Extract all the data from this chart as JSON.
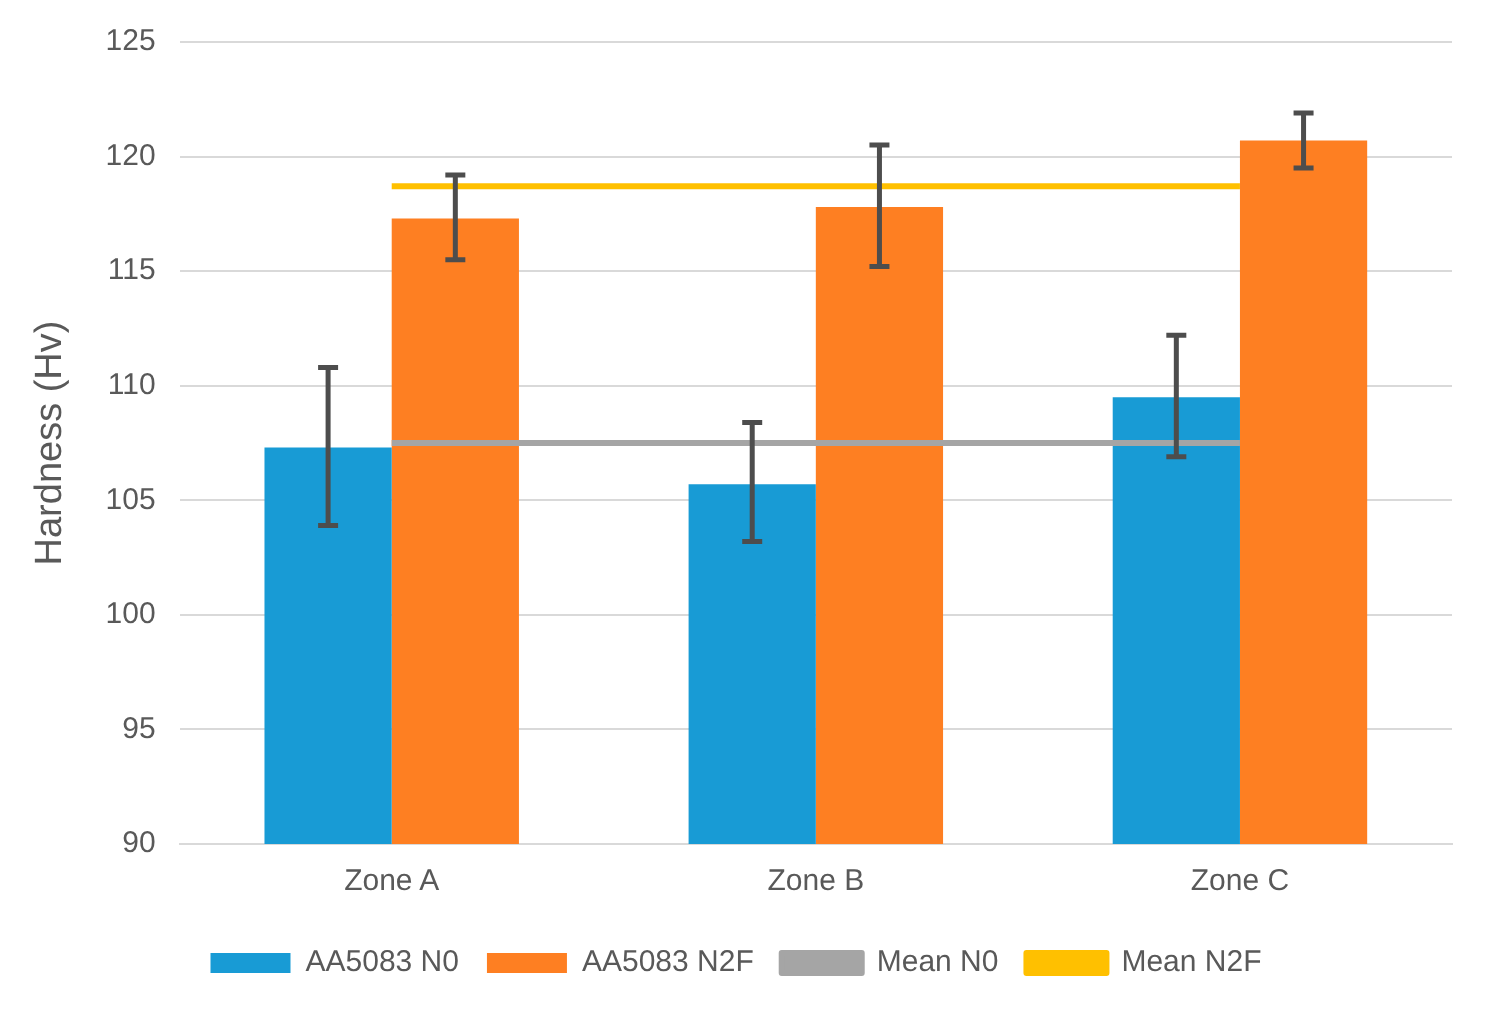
{
  "chart_data": {
    "type": "bar",
    "ylabel": "Hardness (Hv)",
    "categories": [
      "Zone A",
      "Zone B",
      "Zone C"
    ],
    "series": [
      {
        "name": "AA5083 N0",
        "color": "#189bd5",
        "values": [
          107.3,
          105.7,
          109.5
        ],
        "errors": [
          [
            103.9,
            110.8
          ],
          [
            103.2,
            108.4
          ],
          [
            106.9,
            112.2
          ]
        ]
      },
      {
        "name": "AA5083 N2F",
        "color": "#fe7f22",
        "values": [
          117.3,
          117.8,
          120.7
        ],
        "errors": [
          [
            115.5,
            119.2
          ],
          [
            115.2,
            120.5
          ],
          [
            119.5,
            121.9
          ]
        ]
      },
      {
        "name": "Mean N0",
        "type": "line",
        "color": "#a5a5a5",
        "values": [
          107.5,
          107.5,
          107.5
        ]
      },
      {
        "name": "Mean N2F",
        "type": "line",
        "color": "#ffc000",
        "values": [
          118.7,
          118.7,
          118.7
        ]
      }
    ],
    "ylim": [
      90,
      125
    ],
    "yticks": [
      90,
      95,
      100,
      105,
      110,
      115,
      120,
      125
    ],
    "grid": "y",
    "legend": "bottom",
    "marker": "none"
  }
}
